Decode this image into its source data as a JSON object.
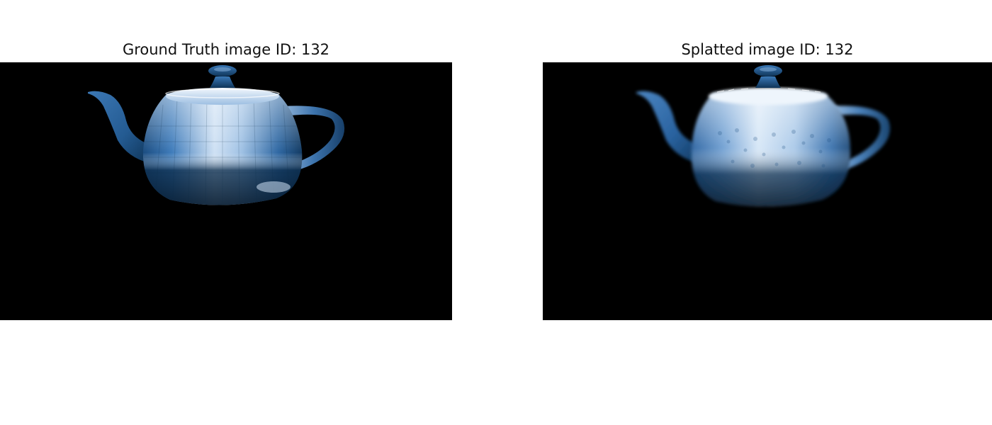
{
  "figure": {
    "panels": [
      {
        "title": "Ground Truth image ID: 132",
        "image_description": "blue teapot render",
        "style": "faceted"
      },
      {
        "title": "Splatted image ID: 132",
        "image_description": "blue teapot render",
        "style": "splatted"
      }
    ]
  },
  "colors": {
    "background": "#ffffff",
    "image_background": "#000000",
    "teapot_dark": "#0d3050",
    "teapot_mid": "#2b6aa6",
    "teapot_light": "#dbe9f7"
  }
}
